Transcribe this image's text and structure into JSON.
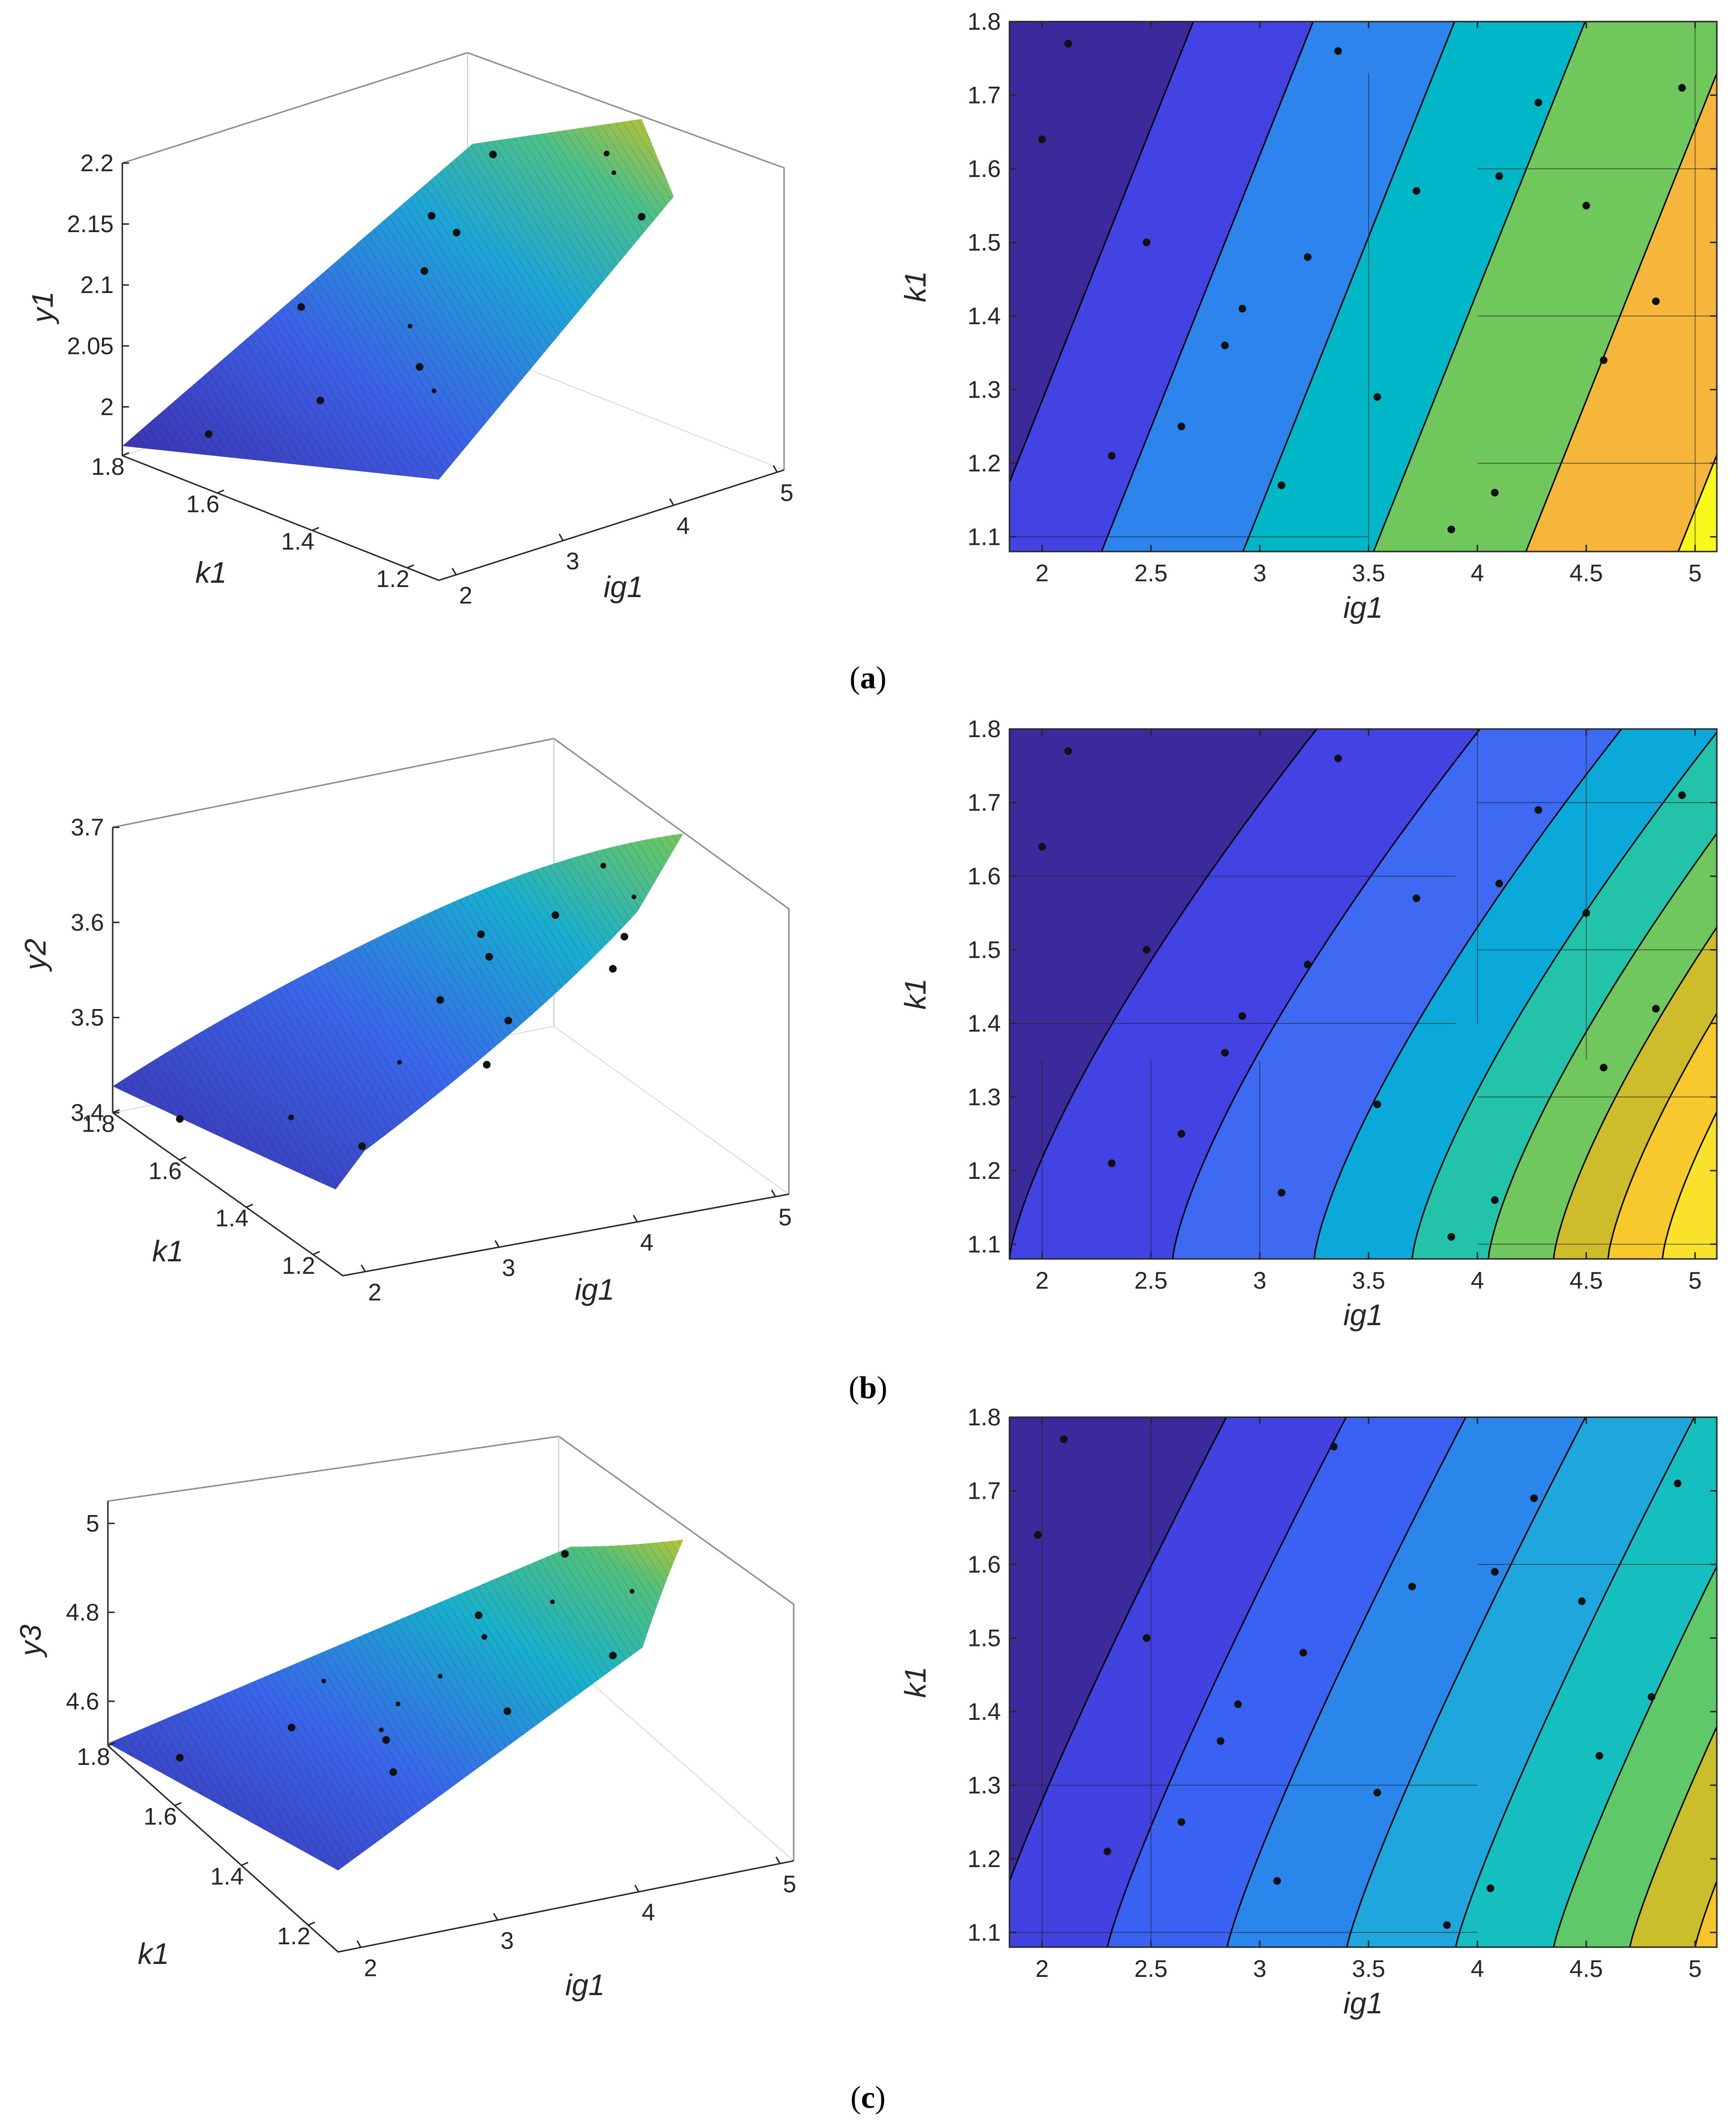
{
  "figure": {
    "panels": [
      {
        "id": "a",
        "label": "(a)",
        "letter": "a",
        "paren_open": "(",
        "paren_close": ")"
      },
      {
        "id": "b",
        "label": "(b)",
        "letter": "b",
        "paren_open": "(",
        "paren_close": ")"
      },
      {
        "id": "c",
        "label": "(c)",
        "letter": "c",
        "paren_open": "(",
        "paren_close": ")"
      }
    ]
  },
  "colors": {
    "levels": [
      "#3a2a9c",
      "#4343e3",
      "#2d84ec",
      "#00b7c7",
      "#70c85c",
      "#f6b63c",
      "#f9f81b"
    ],
    "levels_b": [
      "#3a2a9c",
      "#4343e3",
      "#3d69f3",
      "#0ba9d9",
      "#22c3a9",
      "#6fc75e",
      "#cfbc2a",
      "#f8c92c"
    ],
    "levels_c": [
      "#3a2a9c",
      "#4142df",
      "#3a62f2",
      "#2a86ea",
      "#1fa6dc",
      "#16bfbf",
      "#5fc868",
      "#cbbe2b",
      "#f8c62c"
    ],
    "point": "#111111"
  },
  "chart_data": [
    {
      "type": "surface",
      "panel": "a",
      "zlabel": "y1",
      "xlabel": "ig1",
      "ylabel": "k1",
      "ig1_ticks": [
        "2",
        "3",
        "4",
        "5"
      ],
      "k1_ticks": [
        "1.8",
        "1.6",
        "1.4",
        "1.2"
      ],
      "z_ticks": [
        "2",
        "2.05",
        "2.1",
        "2.15",
        "2.2"
      ],
      "zlim": [
        1.96,
        2.2
      ]
    },
    {
      "type": "contour",
      "panel": "a",
      "xlabel": "ig1",
      "ylabel": "k1",
      "xlim": [
        1.85,
        5.1
      ],
      "ylim": [
        1.08,
        1.8
      ],
      "x_ticks": [
        "2",
        "2.5",
        "3",
        "3.5",
        "4",
        "4.5",
        "5"
      ],
      "y_ticks": [
        "1.1",
        "1.2",
        "1.3",
        "1.4",
        "1.5",
        "1.6",
        "1.7",
        "1.8"
      ],
      "points": [
        [
          2.12,
          1.77
        ],
        [
          2.0,
          1.64
        ],
        [
          2.48,
          1.5
        ],
        [
          2.32,
          1.21
        ],
        [
          2.64,
          1.25
        ],
        [
          2.84,
          1.36
        ],
        [
          2.92,
          1.41
        ],
        [
          3.1,
          1.17
        ],
        [
          3.22,
          1.48
        ],
        [
          3.36,
          1.76
        ],
        [
          3.54,
          1.29
        ],
        [
          3.72,
          1.57
        ],
        [
          3.88,
          1.11
        ],
        [
          4.08,
          1.16
        ],
        [
          4.1,
          1.59
        ],
        [
          4.28,
          1.69
        ],
        [
          4.5,
          1.55
        ],
        [
          4.58,
          1.34
        ],
        [
          4.82,
          1.42
        ],
        [
          4.94,
          1.71
        ]
      ]
    },
    {
      "type": "surface",
      "panel": "b",
      "zlabel": "y2",
      "xlabel": "ig1",
      "ylabel": "k1",
      "ig1_ticks": [
        "2",
        "3",
        "4",
        "5"
      ],
      "k1_ticks": [
        "1.8",
        "1.6",
        "1.4",
        "1.2"
      ],
      "z_ticks": [
        "3.4",
        "3.5",
        "3.6",
        "3.7"
      ],
      "zlim": [
        3.4,
        3.7
      ]
    },
    {
      "type": "contour",
      "panel": "b",
      "xlabel": "ig1",
      "ylabel": "k1",
      "xlim": [
        1.85,
        5.1
      ],
      "ylim": [
        1.08,
        1.8
      ],
      "x_ticks": [
        "2",
        "2.5",
        "3",
        "3.5",
        "4",
        "4.5",
        "5"
      ],
      "y_ticks": [
        "1.1",
        "1.2",
        "1.3",
        "1.4",
        "1.5",
        "1.6",
        "1.7",
        "1.8"
      ],
      "points": [
        [
          2.12,
          1.77
        ],
        [
          2.0,
          1.64
        ],
        [
          2.48,
          1.5
        ],
        [
          2.32,
          1.21
        ],
        [
          2.64,
          1.25
        ],
        [
          2.84,
          1.36
        ],
        [
          2.92,
          1.41
        ],
        [
          3.1,
          1.17
        ],
        [
          3.22,
          1.48
        ],
        [
          3.36,
          1.76
        ],
        [
          3.54,
          1.29
        ],
        [
          3.72,
          1.57
        ],
        [
          3.88,
          1.11
        ],
        [
          4.08,
          1.16
        ],
        [
          4.1,
          1.59
        ],
        [
          4.28,
          1.69
        ],
        [
          4.5,
          1.55
        ],
        [
          4.58,
          1.34
        ],
        [
          4.82,
          1.42
        ],
        [
          4.94,
          1.71
        ]
      ]
    },
    {
      "type": "surface",
      "panel": "c",
      "zlabel": "y3",
      "xlabel": "ig1",
      "ylabel": "k1",
      "ig1_ticks": [
        "2",
        "3",
        "4",
        "5"
      ],
      "k1_ticks": [
        "1.8",
        "1.6",
        "1.4",
        "1.2"
      ],
      "z_ticks": [
        "4.6",
        "4.8",
        "5"
      ],
      "zlim": [
        4.5,
        5.05
      ]
    },
    {
      "type": "contour",
      "panel": "c",
      "xlabel": "ig1",
      "ylabel": "k1",
      "xlim": [
        1.85,
        5.1
      ],
      "ylim": [
        1.08,
        1.8
      ],
      "x_ticks": [
        "2",
        "2.5",
        "3",
        "3.5",
        "4",
        "4.5",
        "5"
      ],
      "y_ticks": [
        "1.1",
        "1.2",
        "1.3",
        "1.4",
        "1.5",
        "1.6",
        "1.7",
        "1.8"
      ],
      "points": [
        [
          2.1,
          1.77
        ],
        [
          1.98,
          1.64
        ],
        [
          2.48,
          1.5
        ],
        [
          2.3,
          1.21
        ],
        [
          2.64,
          1.25
        ],
        [
          2.82,
          1.36
        ],
        [
          2.9,
          1.41
        ],
        [
          3.08,
          1.17
        ],
        [
          3.2,
          1.48
        ],
        [
          3.34,
          1.76
        ],
        [
          3.54,
          1.29
        ],
        [
          3.7,
          1.57
        ],
        [
          3.86,
          1.11
        ],
        [
          4.06,
          1.16
        ],
        [
          4.08,
          1.59
        ],
        [
          4.26,
          1.69
        ],
        [
          4.48,
          1.55
        ],
        [
          4.56,
          1.34
        ],
        [
          4.8,
          1.42
        ],
        [
          4.92,
          1.71
        ]
      ]
    }
  ]
}
